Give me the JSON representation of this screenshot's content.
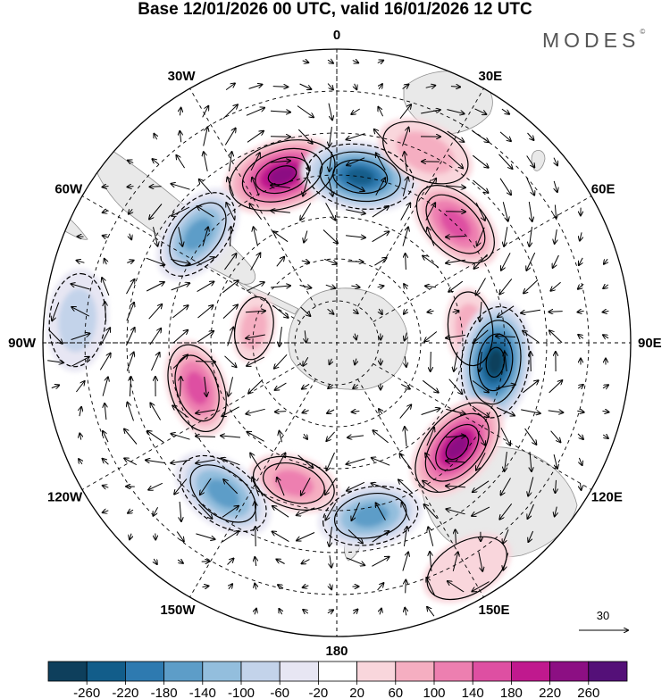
{
  "title": "Base 12/01/2026 00 UTC, valid 16/01/2026 12 UTC",
  "logo_text": "MODES",
  "logo_mark": "©",
  "chart_data": {
    "type": "polar-stereographic contour map with wind vectors",
    "projection": "south polar stereographic",
    "longitude_labels": [
      "0",
      "30E",
      "60E",
      "90E",
      "120E",
      "150E",
      "180",
      "150W",
      "120W",
      "90W",
      "60W",
      "30W"
    ],
    "longitude_label_degrees": [
      0,
      30,
      60,
      90,
      120,
      150,
      180,
      -150,
      -120,
      -90,
      -60,
      -30
    ],
    "latitude_circles_deg": [
      -80,
      -70,
      -60,
      -50,
      -40,
      -30,
      -20
    ],
    "boundary_latitude_deg": -20,
    "reference_vector": {
      "label": "30",
      "magnitude": 30
    },
    "colorbar": {
      "levels": [
        -260,
        -220,
        -180,
        -140,
        -100,
        -60,
        -20,
        20,
        60,
        100,
        140,
        180,
        220,
        260
      ],
      "tick_labels": [
        "-260",
        "-220",
        "-180",
        "-140",
        "-100",
        "-60",
        "-20",
        "20",
        "60",
        "100",
        "140",
        "180",
        "220",
        "260"
      ],
      "colors": [
        "#0e3f5c",
        "#125d8a",
        "#2e7ab0",
        "#5d9dc8",
        "#93bedd",
        "#c3d3ea",
        "#e7e6f3",
        "#ffffff",
        "#f9d6dc",
        "#f5aec1",
        "#ed7fb0",
        "#de4fa2",
        "#c0198e",
        "#8c0f83",
        "#541078"
      ]
    },
    "anomaly_centers": [
      {
        "lon_deg": -18,
        "lat_deg": -48,
        "value": 240
      },
      {
        "lon_deg": 8,
        "lat_deg": -50,
        "value": -220
      },
      {
        "lon_deg": 45,
        "lat_deg": -50,
        "value": 170
      },
      {
        "lon_deg": -52,
        "lat_deg": -48,
        "value": -150
      },
      {
        "lon_deg": 84,
        "lat_deg": -58,
        "value": 80
      },
      {
        "lon_deg": 97,
        "lat_deg": -52,
        "value": -260
      },
      {
        "lon_deg": 131,
        "lat_deg": -52,
        "value": 250
      },
      {
        "lon_deg": 169,
        "lat_deg": -48,
        "value": -160
      },
      {
        "lon_deg": -163,
        "lat_deg": -55,
        "value": 120
      },
      {
        "lon_deg": -143,
        "lat_deg": -45,
        "value": -150
      },
      {
        "lon_deg": -108,
        "lat_deg": -55,
        "value": 170
      },
      {
        "lon_deg": -80,
        "lat_deg": -70,
        "value": 70
      },
      {
        "lon_deg": 25,
        "lat_deg": -40,
        "value": 60
      },
      {
        "lon_deg": -85,
        "lat_deg": -28,
        "value": -70
      },
      {
        "lon_deg": 150,
        "lat_deg": -28,
        "value": 50
      }
    ]
  }
}
